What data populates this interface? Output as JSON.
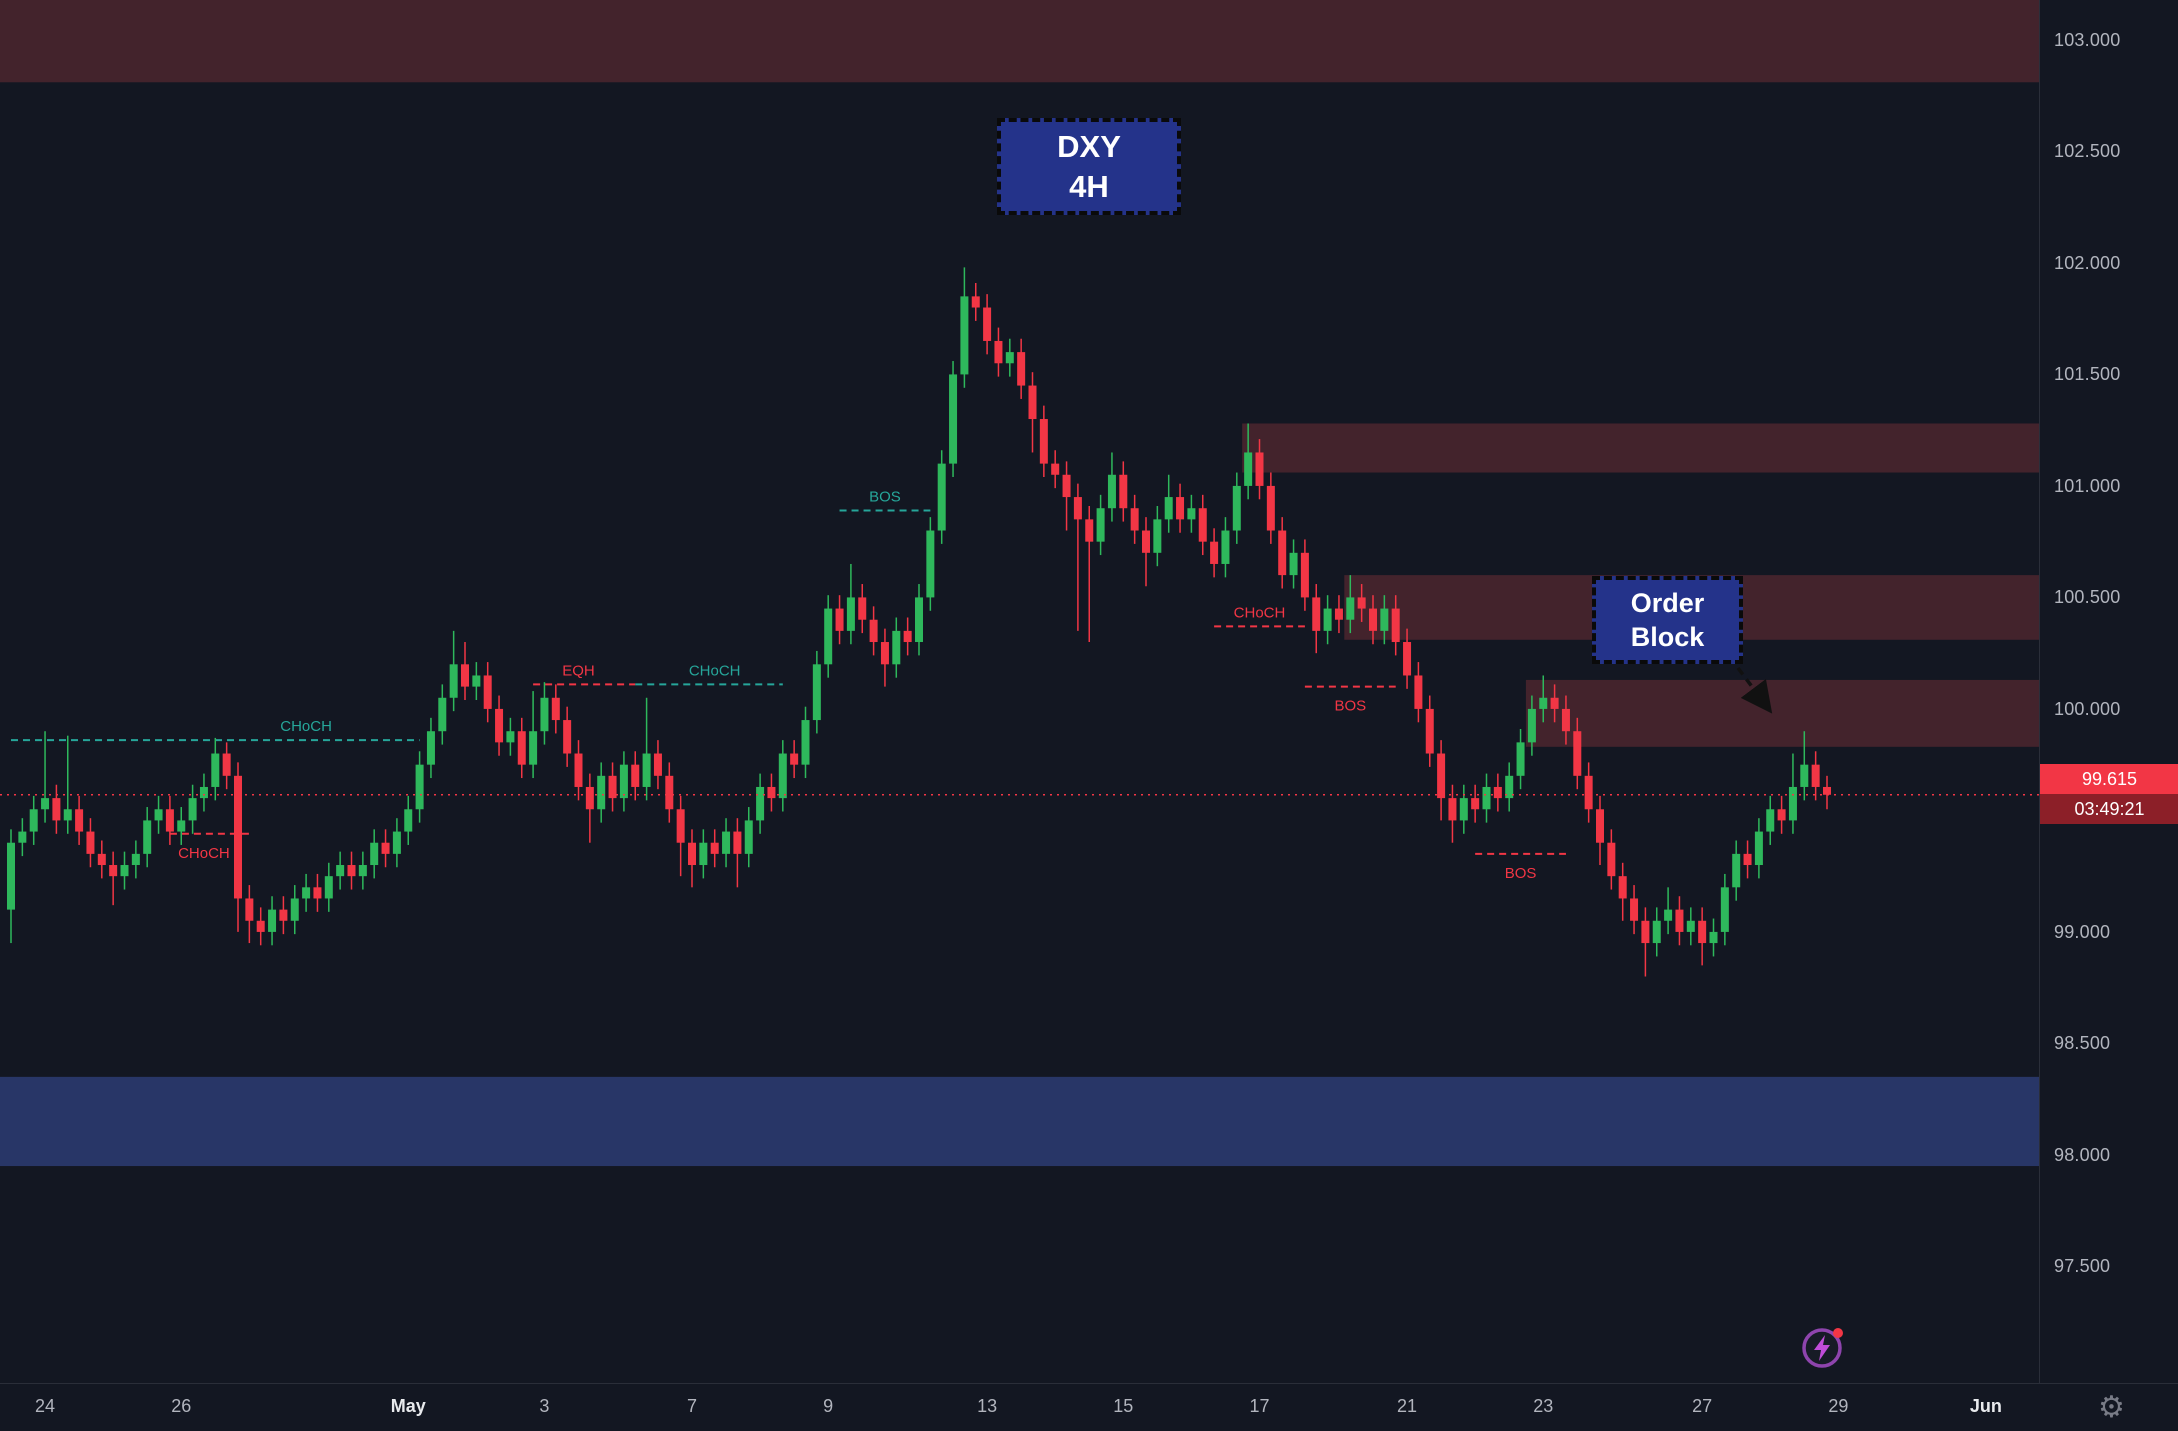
{
  "meta": {
    "symbol": "DXY",
    "timeframe": "4H"
  },
  "annotations": {
    "symbol_box": {
      "line1": "DXY",
      "line2": "4H"
    },
    "order_block_box": {
      "line1": "Order",
      "line2": "Block"
    }
  },
  "price_axis": {
    "labels": [
      "103.000",
      "102.500",
      "102.000",
      "101.500",
      "101.000",
      "100.500",
      "100.000",
      "99.000",
      "98.500",
      "98.000",
      "97.500"
    ],
    "current_price": "99.615",
    "countdown": "03:49:21"
  },
  "time_axis": {
    "ticks": [
      {
        "label": "24",
        "i": 3,
        "major": false
      },
      {
        "label": "26",
        "i": 15,
        "major": false
      },
      {
        "label": "May",
        "i": 35,
        "major": true
      },
      {
        "label": "3",
        "i": 47,
        "major": false
      },
      {
        "label": "7",
        "i": 60,
        "major": false
      },
      {
        "label": "9",
        "i": 72,
        "major": false
      },
      {
        "label": "13",
        "i": 86,
        "major": false
      },
      {
        "label": "15",
        "i": 98,
        "major": false
      },
      {
        "label": "17",
        "i": 110,
        "major": false
      },
      {
        "label": "21",
        "i": 123,
        "major": false
      },
      {
        "label": "23",
        "i": 135,
        "major": false
      },
      {
        "label": "27",
        "i": 149,
        "major": false
      },
      {
        "label": "29",
        "i": 161,
        "major": false
      },
      {
        "label": "Jun",
        "i": 174,
        "major": true
      }
    ],
    "gear_icon": "⚙"
  },
  "colors": {
    "background": "#131722",
    "axis_text": "#b2b5be",
    "up": "#2eb85c",
    "down": "#f23645",
    "teal": "#26a69a",
    "red": "#f23645",
    "zone_maroon": "rgba(178,62,70,0.30)",
    "zone_blue": "rgba(66,94,189,0.45)",
    "box_bg": "#24338a",
    "current_price_line": "#f23645"
  },
  "chart_data": {
    "type": "candlestick",
    "title": "DXY 4H",
    "ylim": [
      96.98,
      103.18
    ],
    "y_tick_step": 0.5,
    "grid": false,
    "current_price": 99.615,
    "candles": [
      [
        99.1,
        99.46,
        98.95,
        99.4
      ],
      [
        99.4,
        99.51,
        99.34,
        99.45
      ],
      [
        99.45,
        99.61,
        99.39,
        99.55
      ],
      [
        99.55,
        99.9,
        99.49,
        99.6
      ],
      [
        99.6,
        99.66,
        99.44,
        99.5
      ],
      [
        99.5,
        99.88,
        99.44,
        99.55
      ],
      [
        99.55,
        99.61,
        99.39,
        99.45
      ],
      [
        99.45,
        99.51,
        99.29,
        99.35
      ],
      [
        99.35,
        99.41,
        99.24,
        99.3
      ],
      [
        99.3,
        99.36,
        99.12,
        99.25
      ],
      [
        99.25,
        99.36,
        99.19,
        99.3
      ],
      [
        99.3,
        99.41,
        99.24,
        99.35
      ],
      [
        99.35,
        99.56,
        99.29,
        99.5
      ],
      [
        99.5,
        99.61,
        99.44,
        99.55
      ],
      [
        99.55,
        99.61,
        99.39,
        99.45
      ],
      [
        99.45,
        99.56,
        99.39,
        99.5
      ],
      [
        99.5,
        99.66,
        99.44,
        99.6
      ],
      [
        99.6,
        99.71,
        99.54,
        99.65
      ],
      [
        99.65,
        99.87,
        99.59,
        99.8
      ],
      [
        99.8,
        99.85,
        99.64,
        99.7
      ],
      [
        99.7,
        99.76,
        99.0,
        99.15
      ],
      [
        99.15,
        99.21,
        98.95,
        99.05
      ],
      [
        99.05,
        99.11,
        98.94,
        99.0
      ],
      [
        99.0,
        99.16,
        98.94,
        99.1
      ],
      [
        99.1,
        99.16,
        98.99,
        99.05
      ],
      [
        99.05,
        99.21,
        98.99,
        99.15
      ],
      [
        99.15,
        99.26,
        99.09,
        99.2
      ],
      [
        99.2,
        99.26,
        99.09,
        99.15
      ],
      [
        99.15,
        99.31,
        99.09,
        99.25
      ],
      [
        99.25,
        99.36,
        99.19,
        99.3
      ],
      [
        99.3,
        99.36,
        99.19,
        99.25
      ],
      [
        99.25,
        99.36,
        99.19,
        99.3
      ],
      [
        99.3,
        99.46,
        99.24,
        99.4
      ],
      [
        99.4,
        99.46,
        99.29,
        99.35
      ],
      [
        99.35,
        99.51,
        99.29,
        99.45
      ],
      [
        99.45,
        99.61,
        99.39,
        99.55
      ],
      [
        99.55,
        99.81,
        99.49,
        99.75
      ],
      [
        99.75,
        99.96,
        99.69,
        99.9
      ],
      [
        99.9,
        100.11,
        99.84,
        100.05
      ],
      [
        100.05,
        100.35,
        99.99,
        100.2
      ],
      [
        100.2,
        100.3,
        100.04,
        100.1
      ],
      [
        100.1,
        100.21,
        100.04,
        100.15
      ],
      [
        100.15,
        100.21,
        99.94,
        100.0
      ],
      [
        100.0,
        100.06,
        99.79,
        99.85
      ],
      [
        99.85,
        99.96,
        99.79,
        99.9
      ],
      [
        99.9,
        99.96,
        99.69,
        99.75
      ],
      [
        99.75,
        100.08,
        99.69,
        99.9
      ],
      [
        99.9,
        100.12,
        99.84,
        100.05
      ],
      [
        100.05,
        100.11,
        99.89,
        99.95
      ],
      [
        99.95,
        100.01,
        99.74,
        99.8
      ],
      [
        99.8,
        99.86,
        99.59,
        99.65
      ],
      [
        99.65,
        99.71,
        99.4,
        99.55
      ],
      [
        99.55,
        99.76,
        99.49,
        99.7
      ],
      [
        99.7,
        99.76,
        99.54,
        99.6
      ],
      [
        99.6,
        99.81,
        99.54,
        99.75
      ],
      [
        99.75,
        99.81,
        99.59,
        99.65
      ],
      [
        99.65,
        100.05,
        99.59,
        99.8
      ],
      [
        99.8,
        99.86,
        99.64,
        99.7
      ],
      [
        99.7,
        99.76,
        99.49,
        99.55
      ],
      [
        99.55,
        99.61,
        99.25,
        99.4
      ],
      [
        99.4,
        99.46,
        99.2,
        99.3
      ],
      [
        99.3,
        99.46,
        99.24,
        99.4
      ],
      [
        99.4,
        99.46,
        99.29,
        99.35
      ],
      [
        99.35,
        99.51,
        99.29,
        99.45
      ],
      [
        99.45,
        99.51,
        99.2,
        99.35
      ],
      [
        99.35,
        99.56,
        99.29,
        99.5
      ],
      [
        99.5,
        99.71,
        99.44,
        99.65
      ],
      [
        99.65,
        99.71,
        99.54,
        99.6
      ],
      [
        99.6,
        99.86,
        99.54,
        99.8
      ],
      [
        99.8,
        99.86,
        99.69,
        99.75
      ],
      [
        99.75,
        100.01,
        99.69,
        99.95
      ],
      [
        99.95,
        100.26,
        99.89,
        100.2
      ],
      [
        100.2,
        100.51,
        100.14,
        100.45
      ],
      [
        100.45,
        100.51,
        100.29,
        100.35
      ],
      [
        100.35,
        100.65,
        100.29,
        100.5
      ],
      [
        100.5,
        100.56,
        100.34,
        100.4
      ],
      [
        100.4,
        100.46,
        100.24,
        100.3
      ],
      [
        100.3,
        100.36,
        100.1,
        100.2
      ],
      [
        100.2,
        100.41,
        100.14,
        100.35
      ],
      [
        100.35,
        100.41,
        100.24,
        100.3
      ],
      [
        100.3,
        100.56,
        100.24,
        100.5
      ],
      [
        100.5,
        100.86,
        100.44,
        100.8
      ],
      [
        100.8,
        101.16,
        100.74,
        101.1
      ],
      [
        101.1,
        101.56,
        101.04,
        101.5
      ],
      [
        101.5,
        101.98,
        101.44,
        101.85
      ],
      [
        101.85,
        101.91,
        101.74,
        101.8
      ],
      [
        101.8,
        101.86,
        101.59,
        101.65
      ],
      [
        101.65,
        101.71,
        101.49,
        101.55
      ],
      [
        101.55,
        101.66,
        101.49,
        101.6
      ],
      [
        101.6,
        101.66,
        101.39,
        101.45
      ],
      [
        101.45,
        101.51,
        101.15,
        101.3
      ],
      [
        101.3,
        101.36,
        101.04,
        101.1
      ],
      [
        101.1,
        101.16,
        100.99,
        101.05
      ],
      [
        101.05,
        101.11,
        100.8,
        100.95
      ],
      [
        100.95,
        101.01,
        100.35,
        100.85
      ],
      [
        100.85,
        100.91,
        100.3,
        100.75
      ],
      [
        100.75,
        100.96,
        100.69,
        100.9
      ],
      [
        100.9,
        101.15,
        100.84,
        101.05
      ],
      [
        101.05,
        101.11,
        100.84,
        100.9
      ],
      [
        100.9,
        100.96,
        100.74,
        100.8
      ],
      [
        100.8,
        100.86,
        100.55,
        100.7
      ],
      [
        100.7,
        100.91,
        100.64,
        100.85
      ],
      [
        100.85,
        101.05,
        100.79,
        100.95
      ],
      [
        100.95,
        101.01,
        100.79,
        100.85
      ],
      [
        100.85,
        100.96,
        100.79,
        100.9
      ],
      [
        100.9,
        100.96,
        100.69,
        100.75
      ],
      [
        100.75,
        100.81,
        100.59,
        100.65
      ],
      [
        100.65,
        100.86,
        100.59,
        100.8
      ],
      [
        100.8,
        101.06,
        100.74,
        101.0
      ],
      [
        101.0,
        101.28,
        100.94,
        101.15
      ],
      [
        101.15,
        101.21,
        100.94,
        101.0
      ],
      [
        101.0,
        101.06,
        100.74,
        100.8
      ],
      [
        100.8,
        100.86,
        100.54,
        100.6
      ],
      [
        100.6,
        100.76,
        100.54,
        100.7
      ],
      [
        100.7,
        100.76,
        100.44,
        100.5
      ],
      [
        100.5,
        100.56,
        100.25,
        100.35
      ],
      [
        100.35,
        100.51,
        100.29,
        100.45
      ],
      [
        100.45,
        100.51,
        100.34,
        100.4
      ],
      [
        100.4,
        100.6,
        100.34,
        100.5
      ],
      [
        100.5,
        100.56,
        100.39,
        100.45
      ],
      [
        100.45,
        100.51,
        100.29,
        100.35
      ],
      [
        100.35,
        100.51,
        100.29,
        100.45
      ],
      [
        100.45,
        100.51,
        100.24,
        100.3
      ],
      [
        100.3,
        100.36,
        100.09,
        100.15
      ],
      [
        100.15,
        100.21,
        99.94,
        100.0
      ],
      [
        100.0,
        100.06,
        99.74,
        99.8
      ],
      [
        99.8,
        99.86,
        99.5,
        99.6
      ],
      [
        99.6,
        99.66,
        99.4,
        99.5
      ],
      [
        99.5,
        99.66,
        99.44,
        99.6
      ],
      [
        99.6,
        99.66,
        99.49,
        99.55
      ],
      [
        99.55,
        99.71,
        99.49,
        99.65
      ],
      [
        99.65,
        99.71,
        99.54,
        99.6
      ],
      [
        99.6,
        99.76,
        99.54,
        99.7
      ],
      [
        99.7,
        99.91,
        99.64,
        99.85
      ],
      [
        99.85,
        100.06,
        99.79,
        100.0
      ],
      [
        100.0,
        100.15,
        99.94,
        100.05
      ],
      [
        100.05,
        100.11,
        99.94,
        100.0
      ],
      [
        100.0,
        100.06,
        99.84,
        99.9
      ],
      [
        99.9,
        99.96,
        99.64,
        99.7
      ],
      [
        99.7,
        99.76,
        99.49,
        99.55
      ],
      [
        99.55,
        99.61,
        99.3,
        99.4
      ],
      [
        99.4,
        99.46,
        99.19,
        99.25
      ],
      [
        99.25,
        99.31,
        99.05,
        99.15
      ],
      [
        99.15,
        99.21,
        98.99,
        99.05
      ],
      [
        99.05,
        99.11,
        98.8,
        98.95
      ],
      [
        98.95,
        99.11,
        98.89,
        99.05
      ],
      [
        99.05,
        99.2,
        98.99,
        99.1
      ],
      [
        99.1,
        99.16,
        98.94,
        99.0
      ],
      [
        99.0,
        99.11,
        98.94,
        99.05
      ],
      [
        99.05,
        99.11,
        98.85,
        98.95
      ],
      [
        98.95,
        99.06,
        98.89,
        99.0
      ],
      [
        99.0,
        99.26,
        98.94,
        99.2
      ],
      [
        99.2,
        99.41,
        99.14,
        99.35
      ],
      [
        99.35,
        99.41,
        99.24,
        99.3
      ],
      [
        99.3,
        99.51,
        99.24,
        99.45
      ],
      [
        99.45,
        99.61,
        99.39,
        99.55
      ],
      [
        99.55,
        99.61,
        99.44,
        99.5
      ],
      [
        99.5,
        99.8,
        99.44,
        99.65
      ],
      [
        99.65,
        99.9,
        99.59,
        99.75
      ],
      [
        99.75,
        99.81,
        99.59,
        99.65
      ],
      [
        99.65,
        99.7,
        99.55,
        99.615
      ]
    ],
    "structure_lines": [
      {
        "label": "CHoCH",
        "color": "teal",
        "price": 99.86,
        "i1": 0,
        "i2": 36,
        "label_i": 26,
        "label_pos": "above"
      },
      {
        "label": "CHoCH",
        "color": "red",
        "price": 99.44,
        "i1": 14,
        "i2": 21,
        "label_i": 17,
        "label_pos": "below"
      },
      {
        "label": "EQH",
        "color": "red",
        "price": 100.11,
        "i1": 46,
        "i2": 55,
        "label_i": 50,
        "label_pos": "above"
      },
      {
        "label": "CHoCH",
        "color": "teal",
        "price": 100.11,
        "i1": 55,
        "i2": 68,
        "label_i": 62,
        "label_pos": "above"
      },
      {
        "label": "BOS",
        "color": "teal",
        "price": 100.89,
        "i1": 73,
        "i2": 81,
        "label_i": 77,
        "label_pos": "above"
      },
      {
        "label": "CHoCH",
        "color": "red",
        "price": 100.37,
        "i1": 106,
        "i2": 114,
        "label_i": 110,
        "label_pos": "above"
      },
      {
        "label": "BOS",
        "color": "red",
        "price": 100.1,
        "i1": 114,
        "i2": 122,
        "label_i": 118,
        "label_pos": "below"
      },
      {
        "label": "BOS",
        "color": "red",
        "price": 99.35,
        "i1": 129,
        "i2": 137,
        "label_i": 133,
        "label_pos": "below"
      }
    ],
    "zones": [
      {
        "name": "supply-zone-top",
        "color": "zone_maroon",
        "price_top": 103.18,
        "price_bottom": 102.81,
        "full_width": true,
        "i_start": 0
      },
      {
        "name": "supply-zone-101",
        "color": "zone_maroon",
        "price_top": 101.28,
        "price_bottom": 101.06,
        "full_width": false,
        "i_start": 109
      },
      {
        "name": "supply-zone-100_5",
        "color": "zone_maroon",
        "price_top": 100.6,
        "price_bottom": 100.31,
        "full_width": false,
        "i_start": 118
      },
      {
        "name": "order-block-zone",
        "color": "zone_maroon",
        "price_top": 100.13,
        "price_bottom": 99.83,
        "full_width": false,
        "i_start": 134
      },
      {
        "name": "demand-zone-98",
        "color": "zone_blue",
        "price_top": 98.35,
        "price_bottom": 97.95,
        "full_width": true,
        "i_start": 0
      }
    ]
  }
}
